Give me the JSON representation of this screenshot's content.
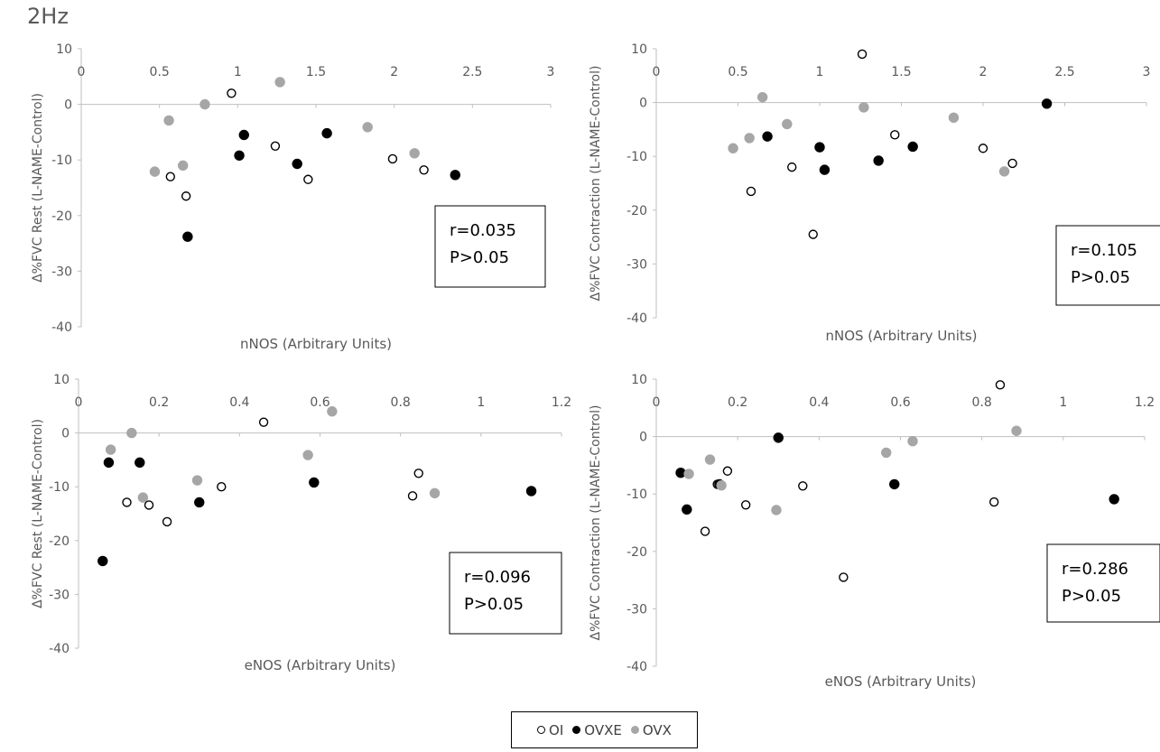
{
  "figure": {
    "heading": "2Hz"
  },
  "legend": [
    {
      "label": "OI",
      "marker": "open-circle",
      "color": "#000000"
    },
    {
      "label": "OVXE",
      "marker": "filled-circle",
      "color": "#000000"
    },
    {
      "label": "OVX",
      "marker": "filled-circle",
      "color": "#a6a6a6"
    }
  ],
  "chart_data": [
    {
      "type": "scatter",
      "xlabel": "nNOS (Arbitrary Units)",
      "ylabel": "Δ%FVC Rest (L-NAME-Control)",
      "xlim": [
        0,
        3
      ],
      "ylim": [
        -40,
        10
      ],
      "xticks": [
        "0",
        "0.5",
        "1",
        "1.5",
        "2",
        "2.5",
        "3"
      ],
      "yticks": [
        "10",
        "0",
        "-10",
        "-20",
        "-30",
        "-40"
      ],
      "stat_r": "r=0.035",
      "stat_p": "P>0.05",
      "series": [
        {
          "name": "OI",
          "points": [
            [
              0.57,
              -13
            ],
            [
              0.67,
              -16.5
            ],
            [
              0.96,
              2
            ],
            [
              1.24,
              -7.5
            ],
            [
              1.45,
              -13.5
            ],
            [
              1.99,
              -9.8
            ],
            [
              2.19,
              -11.8
            ]
          ]
        },
        {
          "name": "OVXE",
          "points": [
            [
              0.68,
              -23.8
            ],
            [
              1.01,
              -9.2
            ],
            [
              1.04,
              -5.5
            ],
            [
              1.38,
              -10.7
            ],
            [
              1.57,
              -5.2
            ],
            [
              2.39,
              -12.7
            ]
          ]
        },
        {
          "name": "OVX",
          "points": [
            [
              0.47,
              -12.1
            ],
            [
              0.56,
              -2.9
            ],
            [
              0.65,
              -11
            ],
            [
              0.79,
              0
            ],
            [
              1.27,
              4
            ],
            [
              1.83,
              -4.1
            ],
            [
              2.13,
              -8.8
            ]
          ]
        }
      ]
    },
    {
      "type": "scatter",
      "xlabel": "nNOS (Arbitrary Units)",
      "ylabel": "Δ%FVC Contraction (L-NAME-Control)",
      "xlim": [
        0,
        3
      ],
      "ylim": [
        -40,
        10
      ],
      "xticks": [
        "0",
        "0.5",
        "1",
        "1.5",
        "2",
        "2.5",
        "3"
      ],
      "yticks": [
        "10",
        "0",
        "-10",
        "-20",
        "-30",
        "-40"
      ],
      "stat_r": "r=0.105",
      "stat_p": "P>0.05",
      "series": [
        {
          "name": "OI",
          "points": [
            [
              0.58,
              -16.5
            ],
            [
              0.83,
              -12
            ],
            [
              0.96,
              -24.5
            ],
            [
              1.26,
              9
            ],
            [
              1.46,
              -6
            ],
            [
              2.0,
              -8.5
            ],
            [
              2.18,
              -11.3
            ]
          ]
        },
        {
          "name": "OVXE",
          "points": [
            [
              0.68,
              -6.3
            ],
            [
              1.0,
              -8.3
            ],
            [
              1.03,
              -12.5
            ],
            [
              1.36,
              -10.8
            ],
            [
              1.57,
              -8.2
            ],
            [
              2.39,
              -0.2
            ]
          ]
        },
        {
          "name": "OVX",
          "points": [
            [
              0.47,
              -8.5
            ],
            [
              0.57,
              -6.6
            ],
            [
              0.65,
              1
            ],
            [
              0.8,
              -4
            ],
            [
              1.27,
              -0.9
            ],
            [
              1.82,
              -2.8
            ],
            [
              2.13,
              -12.8
            ]
          ]
        }
      ]
    },
    {
      "type": "scatter",
      "xlabel": "eNOS (Arbitrary Units)",
      "ylabel": "Δ%FVC Rest (L-NAME-Control)",
      "xlim": [
        0,
        1.2
      ],
      "ylim": [
        -40,
        10
      ],
      "xticks": [
        "0",
        "0.2",
        "0.4",
        "0.6",
        "0.8",
        "1",
        "1.2"
      ],
      "yticks": [
        "10",
        "0",
        "-10",
        "-20",
        "-30",
        "-40"
      ],
      "stat_r": "r=0.096",
      "stat_p": "P>0.05",
      "series": [
        {
          "name": "OI",
          "points": [
            [
              0.12,
              -12.9
            ],
            [
              0.175,
              -13.4
            ],
            [
              0.22,
              -16.5
            ],
            [
              0.355,
              -10
            ],
            [
              0.46,
              2
            ],
            [
              0.83,
              -11.7
            ],
            [
              0.845,
              -7.5
            ]
          ]
        },
        {
          "name": "OVXE",
          "points": [
            [
              0.06,
              -23.8
            ],
            [
              0.075,
              -5.5
            ],
            [
              0.152,
              -5.5
            ],
            [
              0.3,
              -12.9
            ],
            [
              0.585,
              -9.2
            ],
            [
              1.125,
              -10.8
            ]
          ]
        },
        {
          "name": "OVX",
          "points": [
            [
              0.08,
              -3.1
            ],
            [
              0.132,
              0
            ],
            [
              0.16,
              -12
            ],
            [
              0.295,
              -8.8
            ],
            [
              0.57,
              -4.1
            ],
            [
              0.63,
              4
            ],
            [
              0.885,
              -11.2
            ]
          ]
        }
      ]
    },
    {
      "type": "scatter",
      "xlabel": "eNOS (Arbitrary Units)",
      "ylabel": "Δ%FVC Contraction (L-NAME-Control)",
      "xlim": [
        0,
        1.2
      ],
      "ylim": [
        -40,
        10
      ],
      "xticks": [
        "0",
        "0.2",
        "0.4",
        "0.6",
        "0.8",
        "1",
        "1.2"
      ],
      "yticks": [
        "10",
        "0",
        "-10",
        "-20",
        "-30",
        "-40"
      ],
      "stat_r": "r=0.286",
      "stat_p": "P>0.05",
      "series": [
        {
          "name": "OI",
          "points": [
            [
              0.12,
              -16.5
            ],
            [
              0.15,
              -8.3
            ],
            [
              0.175,
              -6
            ],
            [
              0.22,
              -11.9
            ],
            [
              0.36,
              -8.6
            ],
            [
              0.46,
              -24.5
            ],
            [
              0.83,
              -11.4
            ],
            [
              0.845,
              9
            ]
          ]
        },
        {
          "name": "OVXE",
          "points": [
            [
              0.06,
              -6.3
            ],
            [
              0.075,
              -12.7
            ],
            [
              0.155,
              -8.3
            ],
            [
              0.3,
              -0.2
            ],
            [
              0.585,
              -8.3
            ],
            [
              1.125,
              -10.9
            ]
          ]
        },
        {
          "name": "OVX",
          "points": [
            [
              0.08,
              -6.5
            ],
            [
              0.132,
              -4
            ],
            [
              0.16,
              -8.5
            ],
            [
              0.295,
              -12.8
            ],
            [
              0.565,
              -2.8
            ],
            [
              0.63,
              -0.8
            ],
            [
              0.885,
              1
            ]
          ]
        }
      ]
    }
  ]
}
